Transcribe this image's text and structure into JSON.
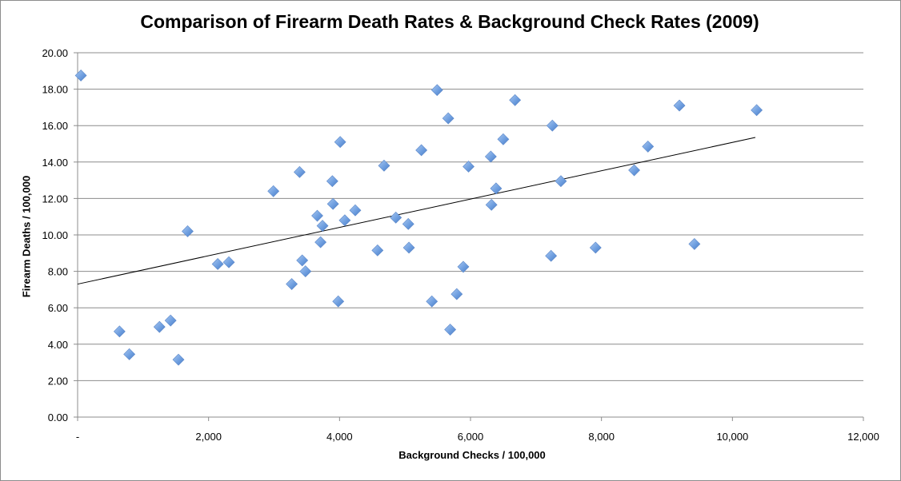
{
  "chart_data": {
    "type": "scatter",
    "title": "Comparison of Firearm Death Rates & Background Check Rates (2009)",
    "xlabel": "Background Checks / 100,000",
    "ylabel": "Firearm Deaths / 100,000",
    "xlim": [
      0,
      12000
    ],
    "ylim": [
      0,
      20
    ],
    "x_ticks": [
      0,
      2000,
      4000,
      6000,
      8000,
      10000,
      12000
    ],
    "x_tick_labels": [
      "-",
      "2,000",
      "4,000",
      "6,000",
      "8,000",
      "10,000",
      "12,000"
    ],
    "y_ticks": [
      0,
      2,
      4,
      6,
      8,
      10,
      12,
      14,
      16,
      18,
      20
    ],
    "y_tick_labels": [
      "0.00",
      "2.00",
      "4.00",
      "6.00",
      "8.00",
      "10.00",
      "12.00",
      "14.00",
      "16.00",
      "18.00",
      "20.00"
    ],
    "grid": "horizontal",
    "marker_color": "#6f9fe0",
    "trendline": {
      "x": [
        0,
        10350
      ],
      "y": [
        7.3,
        15.35
      ]
    },
    "points": [
      [
        50,
        18.75
      ],
      [
        640,
        4.7
      ],
      [
        790,
        3.45
      ],
      [
        1250,
        4.95
      ],
      [
        1420,
        5.3
      ],
      [
        1540,
        3.15
      ],
      [
        1680,
        10.2
      ],
      [
        2140,
        8.4
      ],
      [
        2310,
        8.5
      ],
      [
        2990,
        12.4
      ],
      [
        3270,
        7.3
      ],
      [
        3390,
        13.45
      ],
      [
        3430,
        8.6
      ],
      [
        3480,
        8.0
      ],
      [
        3660,
        11.05
      ],
      [
        3710,
        9.6
      ],
      [
        3740,
        10.5
      ],
      [
        3890,
        12.95
      ],
      [
        3900,
        11.7
      ],
      [
        3980,
        6.35
      ],
      [
        4010,
        15.1
      ],
      [
        4080,
        10.8
      ],
      [
        4240,
        11.35
      ],
      [
        4580,
        9.15
      ],
      [
        4680,
        13.8
      ],
      [
        4860,
        10.95
      ],
      [
        5050,
        10.6
      ],
      [
        5060,
        9.3
      ],
      [
        5250,
        14.65
      ],
      [
        5410,
        6.35
      ],
      [
        5490,
        17.95
      ],
      [
        5660,
        16.4
      ],
      [
        5690,
        4.8
      ],
      [
        5790,
        6.75
      ],
      [
        5890,
        8.25
      ],
      [
        5970,
        13.75
      ],
      [
        6310,
        14.3
      ],
      [
        6320,
        11.65
      ],
      [
        6390,
        12.55
      ],
      [
        6500,
        15.25
      ],
      [
        6680,
        17.4
      ],
      [
        7230,
        8.85
      ],
      [
        7250,
        16.0
      ],
      [
        7380,
        12.95
      ],
      [
        7910,
        9.3
      ],
      [
        8500,
        13.55
      ],
      [
        8710,
        14.85
      ],
      [
        9190,
        17.1
      ],
      [
        9420,
        9.5
      ],
      [
        10370,
        16.85
      ]
    ]
  }
}
